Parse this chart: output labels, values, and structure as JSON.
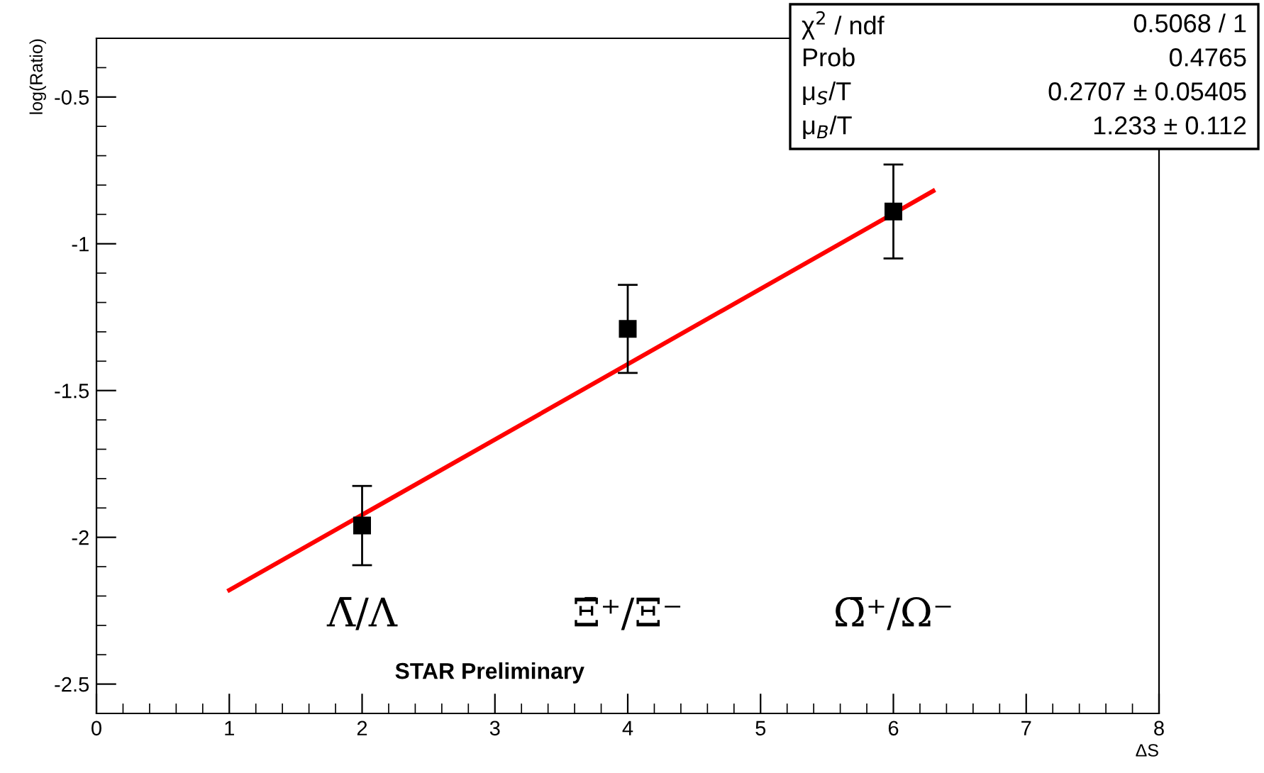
{
  "chart_data": {
    "type": "scatter",
    "xlabel": "ΔS",
    "ylabel": "log(Ratio)",
    "series": [
      {
        "color": "#000000",
        "x": [
          2,
          4,
          6
        ],
        "values": [
          -1.96,
          -1.29,
          -0.89
        ],
        "errors": [
          0.135,
          0.15,
          0.16
        ],
        "marker": "square"
      },
      {
        "type": "line",
        "color": "#ff0000",
        "x": [
          1,
          6.3
        ],
        "values": [
          -2.18,
          -0.82
        ]
      }
    ],
    "xlim": [
      0,
      8
    ],
    "xticks": [
      0,
      1,
      2,
      3,
      4,
      5,
      6,
      7,
      8
    ],
    "ylim": [
      -2.6,
      -0.3
    ],
    "yticks": [
      -2.5,
      -2,
      -1.5,
      -1,
      -0.5
    ],
    "annotations": [
      "χ$^{2}$ / ndf",
      "0.5068 / 1",
      "Prob",
      "0.4765",
      "μ$_{S}$/T",
      "0.2707 ± 0.05405",
      "μ$_{B}$/T",
      "1.233 ± 0.112",
      "STAR Preliminary",
      "Λ̄/Λ",
      "Ξ̄⁺/Ξ⁻",
      "Ω̄⁺/Ω⁻"
    ],
    "grid": false,
    "legend": false
  }
}
